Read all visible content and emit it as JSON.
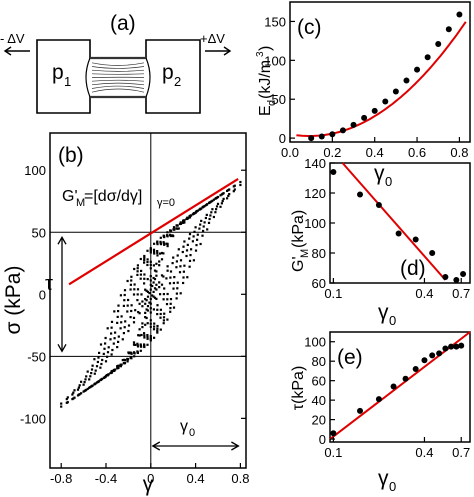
{
  "panel_a": {
    "tag": "(a)",
    "left_label": "- ΔV",
    "right_label": "+ΔV",
    "p1": "p",
    "p1_sub": "1",
    "p2": "p",
    "p2_sub": "2"
  },
  "chart_data": [
    {
      "panel": "(b)",
      "type": "scatter",
      "xlabel": "γ",
      "ylabel": "σ (kPa)",
      "xlim": [
        -0.9,
        0.85
      ],
      "ylim": [
        -140,
        130
      ],
      "xticks": [
        "-0.8",
        "-0.4",
        "0",
        "0.4",
        "0.8"
      ],
      "yticks": [
        "100",
        "50",
        "0",
        "-50",
        "-100"
      ],
      "loops": {
        "count": 16,
        "amplitudes": [
          0.05,
          0.1,
          0.15,
          0.2,
          0.25,
          0.3,
          0.35,
          0.4,
          0.45,
          0.5,
          0.55,
          0.6,
          0.65,
          0.7,
          0.75,
          0.8
        ],
        "plateau_stress": 50,
        "slope": 60
      },
      "fit_line": {
        "x": [
          -0.73,
          0.78
        ],
        "y": [
          8,
          93
        ]
      },
      "reference_lines": {
        "vertical_x": 0,
        "horizontal_y": [
          50,
          -50
        ]
      },
      "annotations": {
        "formula_main": "G'",
        "formula_sub": "M",
        "formula_rest": "=[dσ/dγ]",
        "formula_rest_sub": "γ=0",
        "tau": "τ",
        "gamma0": "γ",
        "gamma0_sub": "0"
      }
    },
    {
      "panel": "(c)",
      "type": "scatter",
      "xlabel": "γ",
      "xlabel_sub": "0",
      "ylabel": "E",
      "ylabel_sub": "d",
      "ylabel_rest": "(kJ/m",
      "ylabel_sup": "3",
      "ylabel_end": ")",
      "xlim": [
        0,
        0.85
      ],
      "ylim": [
        -5,
        175
      ],
      "xticks": [
        "0.0",
        "0.2",
        "0.4",
        "0.6",
        "0.8"
      ],
      "yticks": [
        "0",
        "50",
        "100",
        "150"
      ],
      "x": [
        0.1,
        0.15,
        0.2,
        0.25,
        0.3,
        0.35,
        0.4,
        0.45,
        0.5,
        0.55,
        0.6,
        0.65,
        0.7,
        0.75,
        0.8
      ],
      "y": [
        0,
        2,
        5,
        10,
        17,
        26,
        35,
        47,
        60,
        74,
        88,
        104,
        121,
        140,
        159
      ],
      "fit_curve": {
        "form": "quadratic",
        "coef": [
          270,
          -50,
          5
        ],
        "x_range": [
          0.03,
          0.83
        ]
      }
    },
    {
      "panel": "(d)",
      "type": "scatter",
      "xlabel": "γ",
      "xlabel_sub": "0",
      "ylabel": "G'",
      "ylabel_sub": "M",
      "ylabel_rest": "(kPa)",
      "xscale": "log",
      "xlim": [
        0.095,
        0.8
      ],
      "ylim": [
        60,
        140
      ],
      "xticks": [
        "0.1",
        "0.4",
        "0.7"
      ],
      "yticks": [
        "140",
        "120",
        "100",
        "80",
        "60"
      ],
      "x": [
        0.1,
        0.15,
        0.2,
        0.27,
        0.35,
        0.45,
        0.55,
        0.65,
        0.72
      ],
      "y": [
        134,
        119,
        112,
        93,
        89,
        80,
        64,
        62,
        66
      ],
      "fit_line": {
        "x": [
          0.115,
          0.55
        ],
        "y": [
          140,
          62
        ]
      }
    },
    {
      "panel": "(e)",
      "type": "scatter",
      "xlabel": "γ",
      "xlabel_sub": "0",
      "ylabel": "τ(kPa)",
      "xscale": "log",
      "xlim": [
        0.095,
        0.8
      ],
      "ylim": [
        -3,
        110
      ],
      "xticks": [
        "0.1",
        "0.4",
        "0.7"
      ],
      "yticks": [
        "100",
        "80",
        "60",
        "40",
        "20",
        "0"
      ],
      "x": [
        0.1,
        0.15,
        0.2,
        0.25,
        0.3,
        0.35,
        0.4,
        0.45,
        0.5,
        0.55,
        0.6,
        0.65,
        0.7
      ],
      "y": [
        6,
        29,
        41,
        54,
        62,
        72,
        81,
        86,
        88,
        93,
        95,
        95,
        96
      ],
      "fit_line": {
        "x": [
          0.095,
          0.8
        ],
        "y": [
          0,
          110
        ]
      }
    }
  ]
}
